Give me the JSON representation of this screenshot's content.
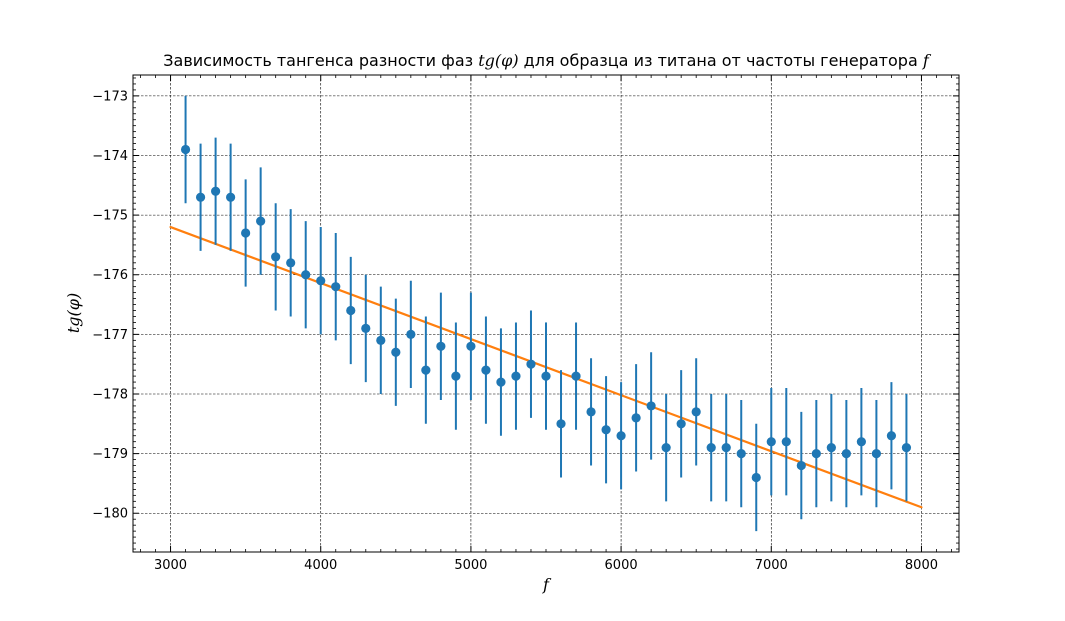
{
  "chart_data": {
    "type": "scatter",
    "title": {
      "prefix": "Зависимость тангенса разности фаз ",
      "var": "tg(φ)",
      "middle": " для образца из титана от частоты генератора ",
      "var2": "f"
    },
    "xlabel": "f",
    "ylabel": "tg(φ)",
    "xlim": [
      2750,
      8250
    ],
    "ylim": [
      -180.65,
      -172.65
    ],
    "xticks": [
      3000,
      4000,
      5000,
      6000,
      7000,
      8000
    ],
    "xtick_labels": [
      "3000",
      "4000",
      "5000",
      "6000",
      "7000",
      "8000"
    ],
    "yticks": [
      -180,
      -179,
      -178,
      -177,
      -176,
      -175,
      -174,
      -173
    ],
    "ytick_labels": [
      "−180",
      "−179",
      "−178",
      "−177",
      "−176",
      "−175",
      "−174",
      "−173"
    ],
    "grid": true,
    "colors": {
      "points": "#1f77b4",
      "fit": "#ff7f0e"
    },
    "series": [
      {
        "type": "errorbar",
        "x": [
          3100,
          3200,
          3300,
          3400,
          3500,
          3600,
          3700,
          3800,
          3900,
          4000,
          4100,
          4200,
          4300,
          4400,
          4500,
          4600,
          4700,
          4800,
          4900,
          5000,
          5100,
          5200,
          5300,
          5400,
          5500,
          5600,
          5700,
          5800,
          5900,
          6000,
          6100,
          6200,
          6300,
          6400,
          6500,
          6600,
          6700,
          6800,
          6900,
          7000,
          7100,
          7200,
          7300,
          7400,
          7500,
          7600,
          7700,
          7800,
          7900
        ],
        "y": [
          -173.9,
          -174.7,
          -174.6,
          -174.7,
          -175.3,
          -175.1,
          -175.7,
          -175.8,
          -176.0,
          -176.1,
          -176.2,
          -176.6,
          -176.9,
          -177.1,
          -177.3,
          -177.0,
          -177.6,
          -177.2,
          -177.7,
          -177.2,
          -177.6,
          -177.8,
          -177.7,
          -177.5,
          -177.7,
          -178.5,
          -177.7,
          -178.3,
          -178.6,
          -178.7,
          -178.4,
          -178.2,
          -178.9,
          -178.5,
          -178.3,
          -178.9,
          -178.9,
          -179.0,
          -179.4,
          -178.8,
          -178.8,
          -179.2,
          -179.0,
          -178.9,
          -179.0,
          -178.8,
          -179.0,
          -178.7,
          -178.9
        ],
        "yerr": 0.9
      },
      {
        "type": "line",
        "x": [
          3000,
          8000
        ],
        "y": [
          -175.2,
          -179.9
        ]
      }
    ]
  }
}
